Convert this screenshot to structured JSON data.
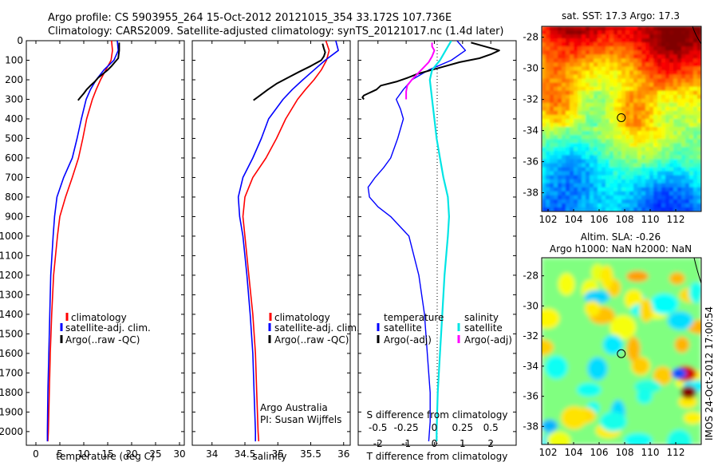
{
  "header": {
    "line1": "Argo profile: CS 5903955_264 15-Oct-2012 20121015_354 33.172S 107.736E",
    "line2": "Climatology: CARS2009. Satellite-adjusted climatology: synTS_20121017.nc (1.4d later)"
  },
  "colors": {
    "climatology": "#ff0000",
    "satellite": "#0000ff",
    "argo": "#000000",
    "sal_satellite": "#00e5e5",
    "sal_argo": "#ff00ff"
  },
  "chart_data": [
    {
      "type": "line",
      "xlabel": "temperature (deg C)",
      "ylabel": "",
      "xlim": [
        -2,
        31
      ],
      "ylim": [
        0,
        2070
      ],
      "yreversed": true,
      "xticks": [
        0,
        5,
        10,
        15,
        20,
        25,
        30
      ],
      "yticks": [
        0,
        100,
        200,
        300,
        400,
        500,
        600,
        700,
        800,
        900,
        1000,
        1100,
        1200,
        1300,
        1400,
        1500,
        1600,
        1700,
        1800,
        1900,
        2000
      ],
      "legend": [
        "climatology",
        "satellite-adj. clim.",
        "Argo(..raw -QC)"
      ],
      "legend_placement": "bottom-center",
      "series": [
        {
          "name": "climatology",
          "depth": [
            0,
            50,
            100,
            150,
            200,
            250,
            300,
            400,
            500,
            600,
            700,
            800,
            900,
            1000,
            1200,
            1400,
            1600,
            1800,
            2000,
            2050
          ],
          "values": [
            15.8,
            16.0,
            15.7,
            14.6,
            13.5,
            12.6,
            11.8,
            10.6,
            9.8,
            8.9,
            7.6,
            6.2,
            5.0,
            4.5,
            3.7,
            3.3,
            3.0,
            2.8,
            2.6,
            2.5
          ]
        },
        {
          "name": "satellite-adj. clim.",
          "depth": [
            0,
            50,
            100,
            150,
            200,
            250,
            300,
            400,
            500,
            600,
            700,
            800,
            900,
            1000,
            1200,
            1400,
            1600,
            1800,
            2000,
            2050
          ],
          "values": [
            17.0,
            17.2,
            16.3,
            14.2,
            12.6,
            11.4,
            10.5,
            9.5,
            8.6,
            7.6,
            5.8,
            4.4,
            3.9,
            3.6,
            3.1,
            2.9,
            2.7,
            2.5,
            2.4,
            2.4
          ]
        },
        {
          "name": "Argo(..raw -QC)",
          "depth": [
            10,
            30,
            50,
            70,
            90,
            110,
            130,
            150,
            170,
            190,
            210,
            230,
            250,
            270,
            290,
            305
          ],
          "values": [
            17.4,
            17.4,
            17.4,
            17.3,
            17.2,
            16.5,
            15.8,
            15.0,
            14.0,
            13.0,
            12.3,
            11.4,
            10.6,
            10.0,
            9.3,
            8.8
          ]
        }
      ]
    },
    {
      "type": "line",
      "xlabel": "salinity",
      "ylabel": "",
      "xlim": [
        33.7,
        36.1
      ],
      "ylim": [
        0,
        2070
      ],
      "yreversed": true,
      "xticks": [
        34,
        34.5,
        35,
        35.5,
        36
      ],
      "legend": [
        "climatology",
        "satellite-adj. clim.",
        "Argo(..raw -QC)"
      ],
      "legend_placement": "bottom-center",
      "annotations": [
        "Argo Australia",
        "PI: Susan Wijffels"
      ],
      "series": [
        {
          "name": "climatology",
          "depth": [
            0,
            50,
            100,
            150,
            200,
            250,
            300,
            400,
            500,
            600,
            700,
            800,
            900,
            1000,
            1200,
            1400,
            1600,
            1800,
            2000,
            2050
          ],
          "values": [
            35.73,
            35.78,
            35.74,
            35.66,
            35.55,
            35.42,
            35.3,
            35.12,
            34.98,
            34.82,
            34.62,
            34.5,
            34.47,
            34.5,
            34.56,
            34.62,
            34.66,
            34.68,
            34.7,
            34.71
          ]
        },
        {
          "name": "satellite-adj. clim.",
          "depth": [
            0,
            50,
            100,
            150,
            200,
            250,
            300,
            400,
            500,
            600,
            700,
            800,
            900,
            1000,
            1200,
            1400,
            1600,
            1800,
            2000,
            2050
          ],
          "values": [
            35.88,
            35.92,
            35.72,
            35.55,
            35.38,
            35.22,
            35.08,
            34.86,
            34.75,
            34.62,
            34.47,
            34.4,
            34.42,
            34.47,
            34.53,
            34.58,
            34.62,
            34.64,
            34.66,
            34.66
          ]
        },
        {
          "name": "Argo(..raw -QC)",
          "depth": [
            15,
            40,
            60,
            80,
            100,
            130,
            160,
            190,
            220,
            250,
            280,
            305
          ],
          "values": [
            35.68,
            35.7,
            35.72,
            35.7,
            35.66,
            35.5,
            35.32,
            35.15,
            34.98,
            34.85,
            34.73,
            34.63
          ]
        }
      ]
    },
    {
      "type": "line",
      "xlabel": "T difference from climatology",
      "x2label": "S difference from climatology",
      "xlim": [
        -2.7,
        2.9
      ],
      "x2lim": [
        -0.675,
        0.725
      ],
      "ylim": [
        0,
        2070
      ],
      "yreversed": true,
      "xticks": [
        -2,
        -1,
        0,
        1,
        2
      ],
      "x2ticks": [
        -0.5,
        -0.25,
        0,
        0.25,
        0.5
      ],
      "legend": [
        "temperature",
        "satellite",
        "Argo(-adj)",
        "salinity",
        "satellite",
        "Argo(-adj)"
      ],
      "legend_placement": "bottom-center",
      "series": [
        {
          "name": "satellite",
          "kind": "temperature",
          "depth": [
            0,
            50,
            100,
            150,
            200,
            250,
            300,
            350,
            400,
            500,
            600,
            650,
            700,
            750,
            800,
            850,
            900,
            1000,
            1200,
            1400,
            1600,
            1800,
            1950,
            2050
          ],
          "values": [
            0.8,
            1.1,
            0.6,
            -0.2,
            -0.8,
            -1.1,
            -1.35,
            -1.2,
            -1.1,
            -1.3,
            -1.55,
            -1.8,
            -2.1,
            -2.35,
            -2.3,
            -2.0,
            -1.55,
            -0.9,
            -0.55,
            -0.35,
            -0.25,
            -0.15,
            -0.15,
            -0.2
          ]
        },
        {
          "name": "Argo(-adj)",
          "kind": "temperature",
          "depth": [
            10,
            30,
            50,
            70,
            90,
            110,
            130,
            150,
            170,
            190,
            210,
            230,
            250,
            260,
            270,
            280,
            290,
            300
          ],
          "values": [
            1.3,
            1.8,
            2.3,
            2.0,
            1.6,
            0.9,
            0.4,
            -0.1,
            -0.6,
            -0.95,
            -1.35,
            -1.9,
            -2.05,
            -2.2,
            -2.35,
            -2.5,
            -2.55,
            -2.5
          ]
        },
        {
          "name": "satellite",
          "kind": "salinity",
          "depth": [
            0,
            50,
            100,
            150,
            200,
            300,
            400,
            500,
            600,
            700,
            800,
            900,
            1000,
            1200,
            1400,
            1600,
            1800,
            2000,
            2050
          ],
          "values": [
            0.15,
            0.1,
            0.05,
            -0.02,
            -0.04,
            -0.02,
            0.0,
            0.02,
            0.05,
            0.08,
            0.12,
            0.13,
            0.12,
            0.09,
            0.07,
            0.05,
            0.03,
            0.02,
            0.02
          ]
        },
        {
          "name": "Argo(-adj)",
          "kind": "salinity",
          "depth": [
            10,
            30,
            50,
            80,
            110,
            140,
            170,
            200,
            230,
            260,
            280,
            300
          ],
          "values": [
            -0.02,
            -0.02,
            0.0,
            -0.02,
            -0.05,
            -0.1,
            -0.15,
            -0.2,
            -0.24,
            -0.25,
            -0.25,
            -0.25
          ]
        }
      ]
    },
    {
      "type": "heatmap",
      "title": "sat. SST: 17.3 Argo: 17.3",
      "xlim": [
        101.5,
        114
      ],
      "ylim": [
        -39.2,
        -27.3
      ],
      "xticks": [
        102,
        104,
        106,
        108,
        110,
        112
      ],
      "yticks": [
        -28,
        -30,
        -32,
        -34,
        -36,
        -38
      ],
      "marker": {
        "lon": 107.736,
        "lat": -33.172
      }
    },
    {
      "type": "heatmap",
      "title": "Altim. SLA: -0.26",
      "subtitle": "Argo h1000: NaN h2000: NaN",
      "xlim": [
        101.5,
        114
      ],
      "ylim": [
        -39.2,
        -26.8
      ],
      "xticks": [
        102,
        104,
        106,
        108,
        110,
        112
      ],
      "yticks": [
        -28,
        -30,
        -32,
        -34,
        -36,
        -38
      ],
      "marker": {
        "lon": 107.736,
        "lat": -33.172
      }
    }
  ],
  "watermark": "IMOS 24-Oct-2012 17:00:54"
}
